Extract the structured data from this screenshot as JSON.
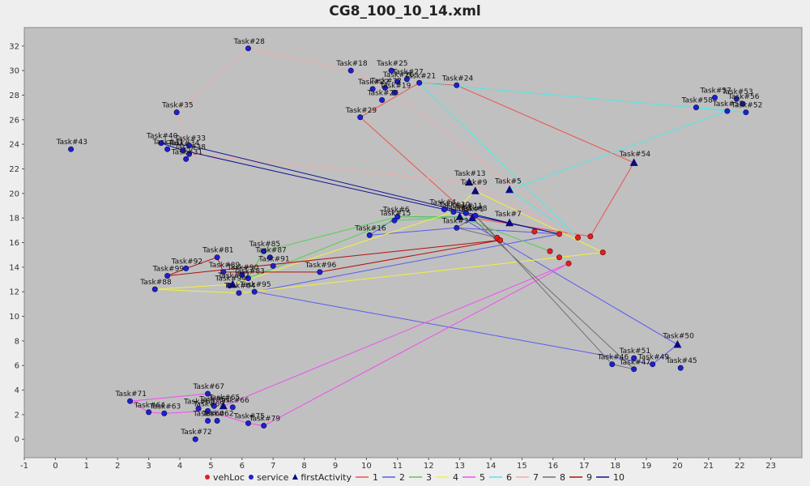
{
  "chart_data": {
    "type": "scatter",
    "title": "CG8_100_10_14.xml",
    "xlabel": "",
    "ylabel": "",
    "xlim": [
      -1,
      24
    ],
    "ylim": [
      -1.5,
      33.5
    ],
    "x_ticks": [
      -1,
      0,
      1,
      2,
      3,
      4,
      5,
      6,
      7,
      8,
      9,
      10,
      11,
      12,
      13,
      14,
      15,
      16,
      17,
      18,
      19,
      20,
      21,
      22,
      23
    ],
    "y_ticks": [
      0,
      2,
      4,
      6,
      8,
      10,
      12,
      14,
      16,
      18,
      20,
      22,
      24,
      26,
      28,
      30,
      32
    ],
    "plot_background": "#c0c0c0",
    "legend_position": "bottom",
    "legend": [
      {
        "label": "vehLoc",
        "kind": "marker",
        "shape": "circle",
        "color": "#e02020"
      },
      {
        "label": "service",
        "kind": "marker",
        "shape": "circle",
        "color": "#1f1fd0"
      },
      {
        "label": "firstActivity",
        "kind": "marker",
        "shape": "triangle",
        "color": "#0a0a80"
      },
      {
        "label": "1",
        "kind": "line",
        "color": "#ee5050"
      },
      {
        "label": "2",
        "kind": "line",
        "color": "#5a5aee"
      },
      {
        "label": "3",
        "kind": "line",
        "color": "#50d050"
      },
      {
        "label": "4",
        "kind": "line",
        "color": "#f0f040"
      },
      {
        "label": "5",
        "kind": "line",
        "color": "#ee50ee"
      },
      {
        "label": "6",
        "kind": "line",
        "color": "#50e8e8"
      },
      {
        "label": "7",
        "kind": "line",
        "color": "#f0aaaa"
      },
      {
        "label": "8",
        "kind": "line",
        "color": "#707070"
      },
      {
        "label": "9",
        "kind": "line",
        "color": "#b01010"
      },
      {
        "label": "10",
        "kind": "line",
        "color": "#101090"
      }
    ],
    "veh_locations": [
      [
        14.2,
        16.4
      ],
      [
        14.3,
        16.2
      ],
      [
        15.4,
        16.9
      ],
      [
        15.9,
        15.3
      ],
      [
        16.2,
        16.7
      ],
      [
        16.8,
        16.4
      ],
      [
        17.2,
        16.5
      ],
      [
        17.6,
        15.2
      ],
      [
        16.2,
        14.8
      ],
      [
        16.5,
        14.3
      ]
    ],
    "services": [
      {
        "label": "Task#28",
        "x": 6.2,
        "y": 31.8
      },
      {
        "label": "Task#18",
        "x": 9.5,
        "y": 30.0
      },
      {
        "label": "Task#25",
        "x": 10.8,
        "y": 30.0
      },
      {
        "label": "Task#27",
        "x": 11.3,
        "y": 29.3
      },
      {
        "label": "Task#26",
        "x": 11.0,
        "y": 29.1
      },
      {
        "label": "Task#21",
        "x": 11.7,
        "y": 29.0
      },
      {
        "label": "Task#24",
        "x": 12.9,
        "y": 28.8
      },
      {
        "label": "Task#22",
        "x": 10.2,
        "y": 28.5
      },
      {
        "label": "Task#32",
        "x": 10.6,
        "y": 28.6
      },
      {
        "label": "Task#19",
        "x": 10.9,
        "y": 28.2
      },
      {
        "label": "Task#20",
        "x": 10.5,
        "y": 27.6
      },
      {
        "label": "Task#29",
        "x": 9.8,
        "y": 26.2
      },
      {
        "label": "Task#35",
        "x": 3.9,
        "y": 26.6
      },
      {
        "label": "Task#43",
        "x": 0.5,
        "y": 23.6
      },
      {
        "label": "Task#40",
        "x": 3.4,
        "y": 24.1
      },
      {
        "label": "Task#41",
        "x": 3.6,
        "y": 23.6
      },
      {
        "label": "Task#33",
        "x": 4.3,
        "y": 23.9
      },
      {
        "label": "Task#34",
        "x": 4.1,
        "y": 23.5
      },
      {
        "label": "Task#38",
        "x": 4.3,
        "y": 23.2
      },
      {
        "label": "Task#31",
        "x": 4.2,
        "y": 22.8
      },
      {
        "label": "Task#57",
        "x": 21.2,
        "y": 27.8
      },
      {
        "label": "Task#53",
        "x": 21.9,
        "y": 27.7
      },
      {
        "label": "Task#56",
        "x": 22.1,
        "y": 27.3
      },
      {
        "label": "Task#58",
        "x": 20.6,
        "y": 27.0
      },
      {
        "label": "Task#52",
        "x": 22.2,
        "y": 26.6
      },
      {
        "label": "Task#55",
        "x": 21.6,
        "y": 26.7
      },
      {
        "label": "Task#4",
        "x": 12.5,
        "y": 18.7
      },
      {
        "label": "Task#10",
        "x": 12.8,
        "y": 18.5
      },
      {
        "label": "Task#11",
        "x": 13.2,
        "y": 18.4
      },
      {
        "label": "Task#8",
        "x": 13.5,
        "y": 18.2
      },
      {
        "label": "Task#6",
        "x": 11.0,
        "y": 18.1
      },
      {
        "label": "Task#15",
        "x": 10.9,
        "y": 17.8
      },
      {
        "label": "Task#3",
        "x": 12.9,
        "y": 17.2
      },
      {
        "label": "Task#16",
        "x": 10.1,
        "y": 16.6
      },
      {
        "label": "Task#85",
        "x": 6.7,
        "y": 15.3
      },
      {
        "label": "Task#81",
        "x": 5.2,
        "y": 14.8
      },
      {
        "label": "Task#87",
        "x": 6.9,
        "y": 14.8
      },
      {
        "label": "Task#91",
        "x": 7.0,
        "y": 14.1
      },
      {
        "label": "Task#92",
        "x": 4.2,
        "y": 13.9
      },
      {
        "label": "Task#99",
        "x": 3.6,
        "y": 13.3
      },
      {
        "label": "Task#96",
        "x": 8.5,
        "y": 13.6
      },
      {
        "label": "Task#89",
        "x": 5.4,
        "y": 13.6
      },
      {
        "label": "Task#90",
        "x": 6.0,
        "y": 13.4
      },
      {
        "label": "Task#83",
        "x": 6.2,
        "y": 13.1
      },
      {
        "label": "Task#88",
        "x": 3.2,
        "y": 12.2
      },
      {
        "label": "Task#94",
        "x": 5.6,
        "y": 12.5
      },
      {
        "label": "Task#95",
        "x": 6.4,
        "y": 12.0
      },
      {
        "label": "Task#84",
        "x": 5.9,
        "y": 11.9
      },
      {
        "label": "Task#46",
        "x": 17.9,
        "y": 6.1
      },
      {
        "label": "Task#51",
        "x": 18.6,
        "y": 6.6
      },
      {
        "label": "Task#47",
        "x": 18.6,
        "y": 5.7
      },
      {
        "label": "Task#49",
        "x": 19.2,
        "y": 6.1
      },
      {
        "label": "Task#45",
        "x": 20.1,
        "y": 5.8
      },
      {
        "label": "Task#67",
        "x": 4.9,
        "y": 3.7
      },
      {
        "label": "Task#71",
        "x": 2.4,
        "y": 3.1
      },
      {
        "label": "Task#64",
        "x": 3.0,
        "y": 2.2
      },
      {
        "label": "Task#63",
        "x": 3.5,
        "y": 2.1
      },
      {
        "label": "Task#61",
        "x": 5.1,
        "y": 2.7
      },
      {
        "label": "Task#66",
        "x": 5.7,
        "y": 2.6
      },
      {
        "label": "Task#68",
        "x": 4.6,
        "y": 2.5
      },
      {
        "label": "Task#69",
        "x": 4.9,
        "y": 2.3
      },
      {
        "label": "Task#62",
        "x": 5.2,
        "y": 1.5
      },
      {
        "label": "Task#60",
        "x": 4.9,
        "y": 1.5
      },
      {
        "label": "Task#75",
        "x": 6.2,
        "y": 1.3
      },
      {
        "label": "Task#79",
        "x": 6.7,
        "y": 1.1
      },
      {
        "label": "Task#72",
        "x": 4.5,
        "y": 0.0
      }
    ],
    "first_activities": [
      {
        "label": "Task#13",
        "x": 13.3,
        "y": 20.9
      },
      {
        "label": "Task#9",
        "x": 13.5,
        "y": 20.2
      },
      {
        "label": "Task#5",
        "x": 14.6,
        "y": 20.3
      },
      {
        "label": "Task#54",
        "x": 18.6,
        "y": 22.5
      },
      {
        "label": "Task#2",
        "x": 13.0,
        "y": 18.1
      },
      {
        "label": "Task#1",
        "x": 13.4,
        "y": 18.0
      },
      {
        "label": "Task#7",
        "x": 14.6,
        "y": 17.6
      },
      {
        "label": "Task#50",
        "x": 20.0,
        "y": 7.7
      },
      {
        "label": "Task#82",
        "x": 5.7,
        "y": 12.6
      },
      {
        "label": "Task#65",
        "x": 5.4,
        "y": 2.7
      }
    ],
    "routes": [
      {
        "name": "1",
        "points": [
          [
            17.2,
            16.5
          ],
          [
            18.6,
            22.5
          ],
          [
            12.9,
            28.8
          ],
          [
            11.7,
            29.0
          ],
          [
            9.8,
            26.2
          ],
          [
            13.4,
            18.0
          ],
          [
            17.2,
            16.5
          ]
        ]
      },
      {
        "name": "2",
        "points": [
          [
            16.2,
            16.7
          ],
          [
            12.9,
            17.2
          ],
          [
            10.1,
            16.6
          ],
          [
            11.0,
            18.1
          ],
          [
            13.0,
            18.1
          ],
          [
            20.0,
            7.7
          ],
          [
            19.2,
            6.1
          ],
          [
            6.4,
            12.0
          ],
          [
            16.2,
            16.7
          ]
        ]
      },
      {
        "name": "3",
        "points": [
          [
            15.9,
            15.3
          ],
          [
            13.0,
            18.1
          ],
          [
            11.0,
            18.1
          ],
          [
            6.7,
            15.3
          ],
          [
            6.2,
            13.1
          ],
          [
            10.9,
            17.8
          ],
          [
            13.0,
            18.1
          ],
          [
            15.9,
            15.3
          ]
        ]
      },
      {
        "name": "4",
        "points": [
          [
            17.6,
            15.2
          ],
          [
            13.5,
            20.2
          ],
          [
            12.8,
            18.5
          ],
          [
            5.7,
            12.6
          ],
          [
            3.2,
            12.2
          ],
          [
            5.9,
            11.9
          ],
          [
            17.6,
            15.2
          ]
        ]
      },
      {
        "name": "5",
        "points": [
          [
            16.5,
            14.3
          ],
          [
            5.4,
            2.7
          ],
          [
            4.9,
            3.7
          ],
          [
            2.4,
            3.1
          ],
          [
            3.0,
            2.2
          ],
          [
            3.5,
            2.1
          ],
          [
            4.9,
            2.3
          ],
          [
            6.2,
            1.3
          ],
          [
            6.7,
            1.1
          ],
          [
            16.5,
            14.3
          ]
        ]
      },
      {
        "name": "6",
        "points": [
          [
            16.8,
            16.4
          ],
          [
            11.7,
            29.0
          ],
          [
            22.2,
            26.6
          ],
          [
            20.6,
            27.0
          ],
          [
            21.6,
            26.7
          ],
          [
            14.6,
            20.3
          ],
          [
            16.8,
            16.4
          ]
        ]
      },
      {
        "name": "7",
        "points": [
          [
            16.8,
            16.4
          ],
          [
            10.9,
            28.2
          ],
          [
            9.5,
            30.0
          ],
          [
            6.2,
            31.8
          ],
          [
            3.9,
            26.6
          ],
          [
            4.3,
            23.2
          ],
          [
            13.3,
            20.9
          ],
          [
            16.8,
            16.4
          ]
        ]
      },
      {
        "name": "8",
        "points": [
          [
            14.2,
            16.4
          ],
          [
            12.9,
            17.2
          ],
          [
            13.4,
            18.0
          ],
          [
            18.6,
            5.7
          ],
          [
            17.9,
            6.1
          ],
          [
            13.5,
            18.2
          ],
          [
            14.2,
            16.4
          ]
        ]
      },
      {
        "name": "9",
        "points": [
          [
            14.3,
            16.2
          ],
          [
            3.6,
            13.3
          ],
          [
            4.2,
            13.9
          ],
          [
            5.2,
            14.8
          ],
          [
            5.4,
            13.6
          ],
          [
            8.5,
            13.6
          ],
          [
            14.3,
            16.2
          ]
        ]
      },
      {
        "name": "10",
        "points": [
          [
            16.2,
            16.7
          ],
          [
            14.6,
            17.6
          ],
          [
            4.3,
            23.9
          ],
          [
            3.4,
            24.1
          ],
          [
            4.1,
            23.5
          ],
          [
            12.5,
            18.7
          ],
          [
            16.2,
            16.7
          ]
        ]
      }
    ]
  }
}
